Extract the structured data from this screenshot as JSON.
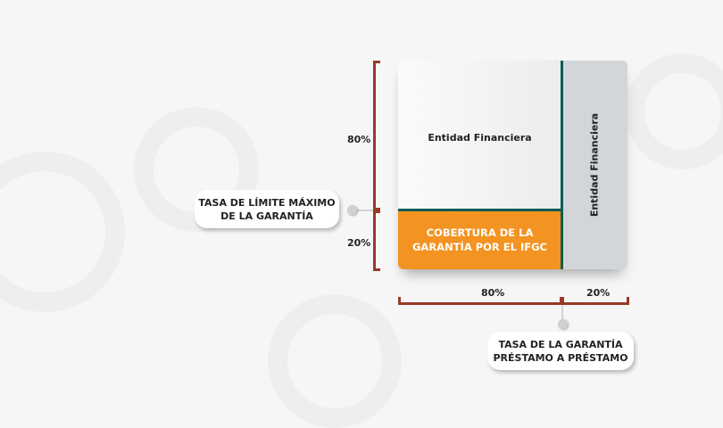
{
  "diagram": {
    "main_label": "Entidad Financiera",
    "side_label": "Entidad Financiera",
    "coverage_label_line1": "COBERTURA DE LA",
    "coverage_label_line2": "GARANTÍA POR EL IFGC",
    "vertical_pct_top": "80%",
    "vertical_pct_bottom": "20%",
    "horizontal_pct_left": "80%",
    "horizontal_pct_right": "20%",
    "callout_left_line1": "TASA DE LÍMITE MÁXIMO",
    "callout_left_line2": "DE LA GARANTÍA",
    "callout_bottom_line1": "TASA DE LA GARANTÍA",
    "callout_bottom_line2": "PRÉSTAMO A PRÉSTAMO"
  },
  "colors": {
    "coverage": "#f39321",
    "divider": "#0f5c55",
    "bracket": "#973a28",
    "side": "#d3d6d8"
  }
}
